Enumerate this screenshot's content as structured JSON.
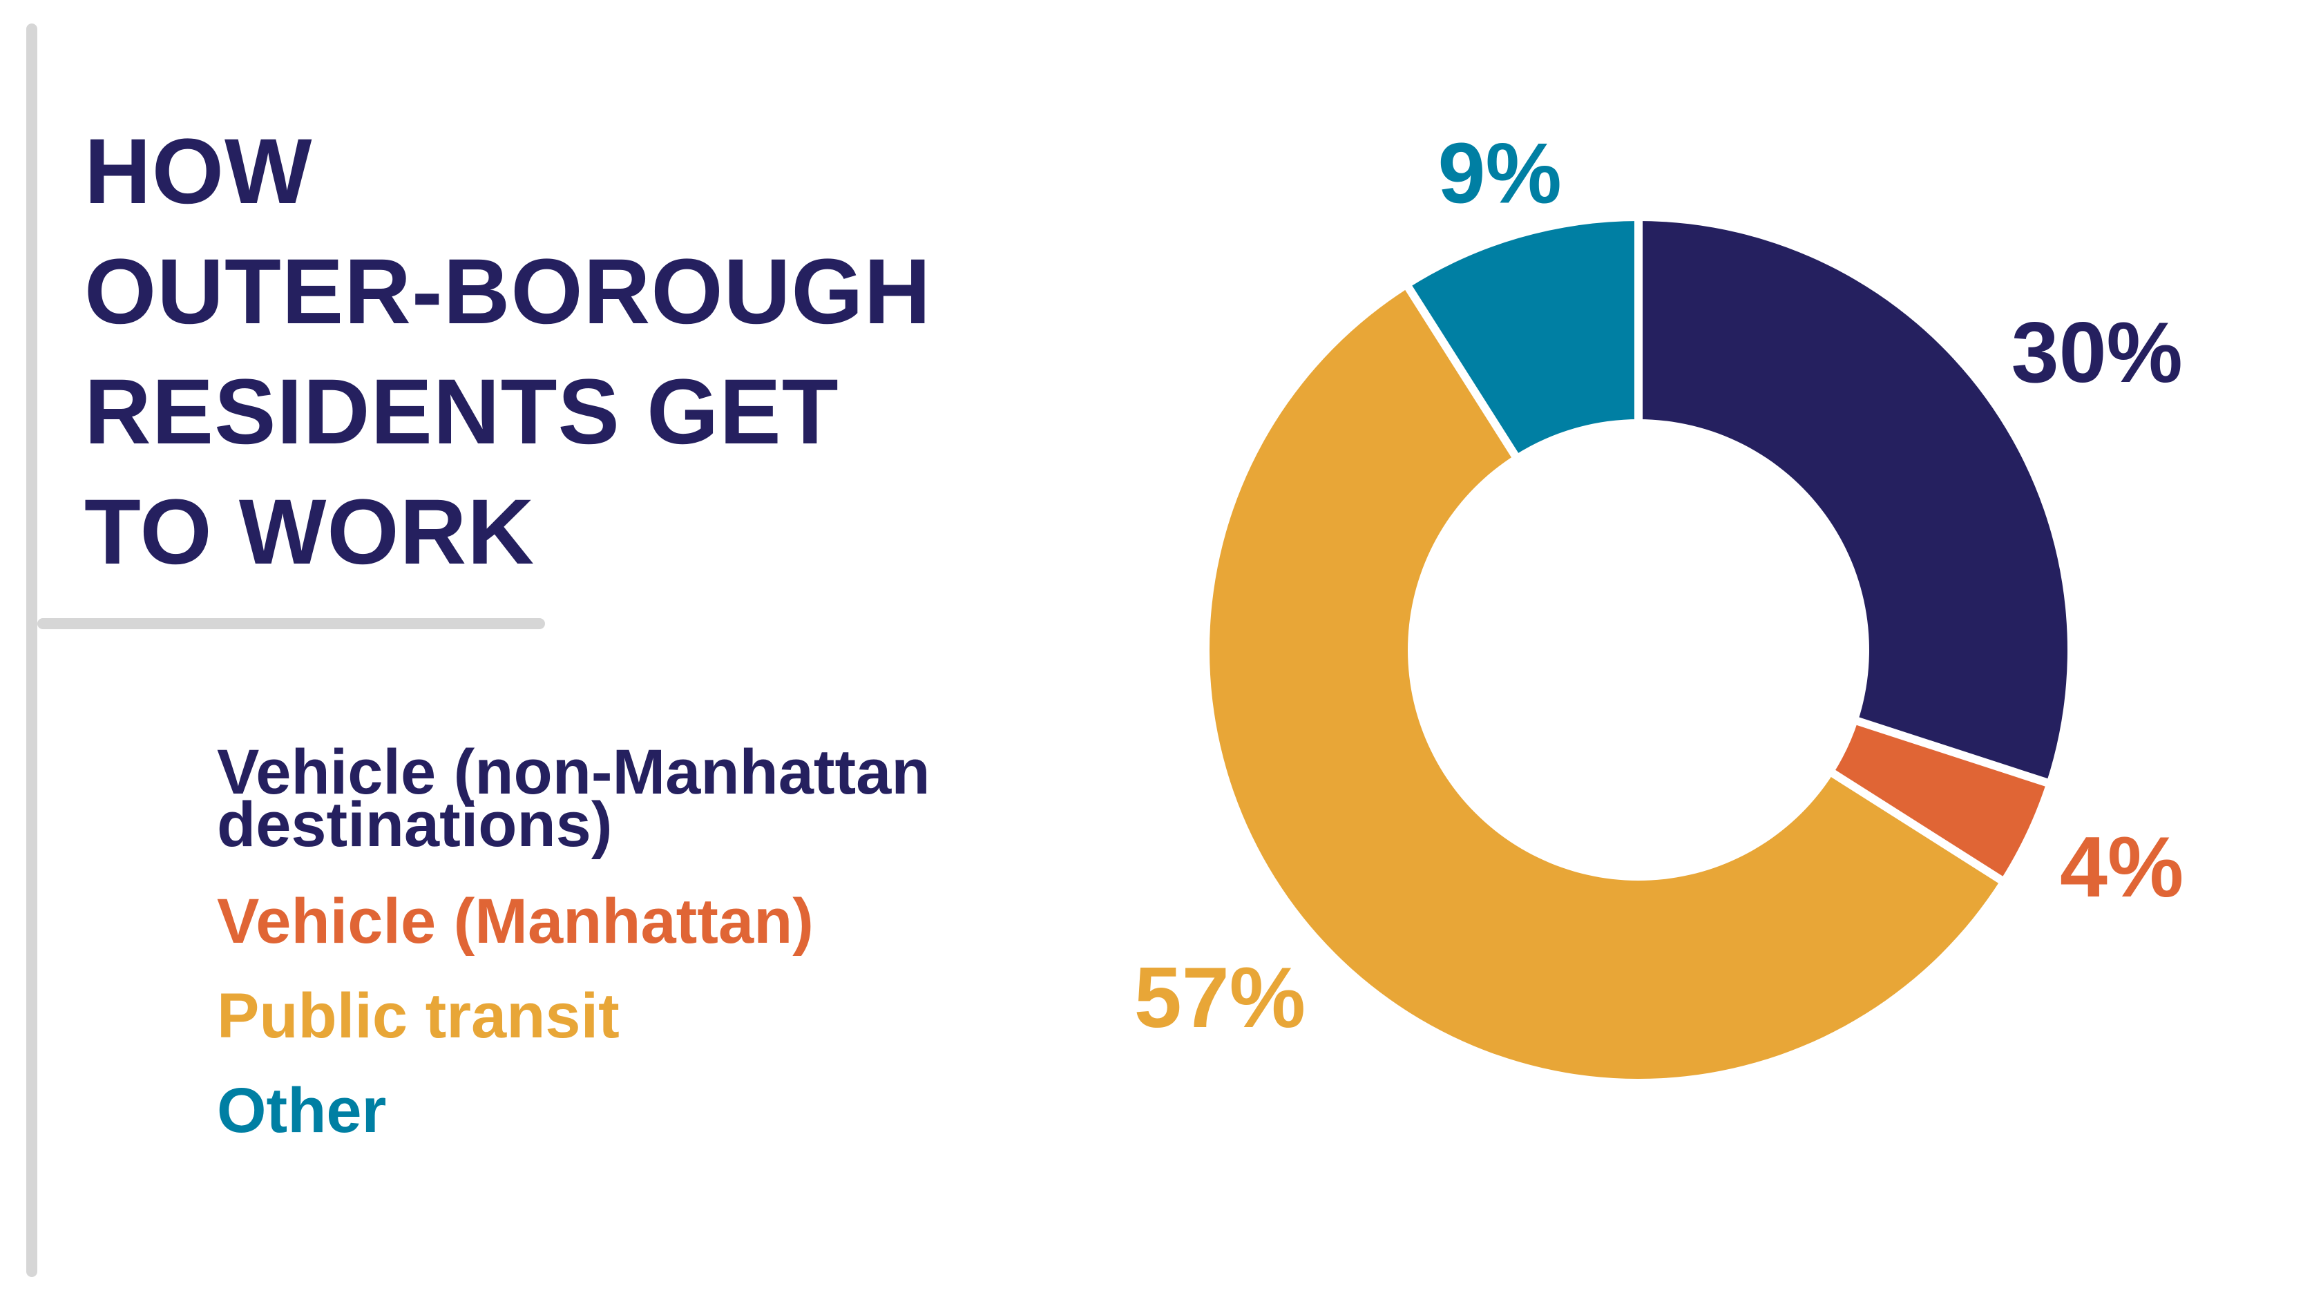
{
  "title_lines": [
    "HOW",
    "OUTER-BOROUGH",
    "RESIDENTS GET",
    "TO WORK"
  ],
  "chart_data": {
    "type": "pie",
    "title": "HOW OUTER-BOROUGH RESIDENTS GET TO WORK",
    "categories": [
      "Vehicle (non-Manhattan destinations)",
      "Vehicle (Manhattan)",
      "Public transit",
      "Other"
    ],
    "values": [
      30,
      4,
      57,
      9
    ],
    "labels": [
      "30%",
      "4%",
      "57%",
      "9%"
    ],
    "colors": [
      "#25205f",
      "#e06535",
      "#e8a637",
      "#007fa3"
    ],
    "legend": {
      "position": "left",
      "items": [
        {
          "lines": [
            "Vehicle (non-Manhattan",
            "destinations)"
          ],
          "color": "#25205f"
        },
        {
          "lines": [
            "Vehicle (Manhattan)"
          ],
          "color": "#e06535"
        },
        {
          "lines": [
            "Public transit"
          ],
          "color": "#e8a637"
        },
        {
          "lines": [
            "Other"
          ],
          "color": "#007fa3"
        }
      ]
    }
  }
}
